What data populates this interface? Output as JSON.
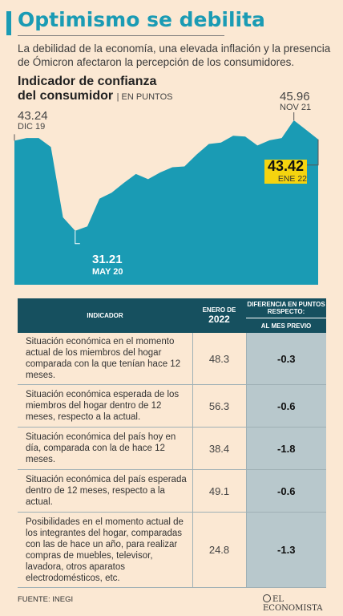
{
  "header": {
    "title": "Optimismo se debilita",
    "subtitle": "La debilidad de la economía, una elevada inflación y la presencia de Ómicron afectaron la percepción de los consumidores."
  },
  "indicator": {
    "title_line1": "Indicador de confianza",
    "title_line2": "del consumidor",
    "unit": "| EN PUNTOS"
  },
  "chart_data": {
    "type": "area",
    "color": "#1a9bb4",
    "highlight_color": "#f5d40f",
    "values": [
      43.24,
      43.6,
      43.6,
      42.4,
      33.0,
      31.21,
      31.8,
      35.5,
      36.3,
      37.6,
      38.8,
      38.1,
      39.0,
      39.7,
      39.8,
      41.4,
      42.8,
      43.0,
      43.9,
      43.8,
      42.6,
      43.3,
      43.6,
      45.96,
      44.7,
      43.42
    ],
    "ylim": [
      24,
      48
    ],
    "annotations": [
      {
        "index": 0,
        "value": "43.24",
        "date": "DIC 19"
      },
      {
        "index": 5,
        "value": "31.21",
        "date": "MAY 20"
      },
      {
        "index": 23,
        "value": "45.96",
        "date": "NOV 21"
      },
      {
        "index": 25,
        "value": "43.42",
        "date": "ENE 22"
      }
    ]
  },
  "table": {
    "headers": {
      "indicator": "INDICADOR",
      "period_line1": "ENERO DE",
      "period_line2": "2022",
      "diff_line1": "DIFERENCIA EN PUNTOS",
      "diff_line2": "RESPECTO:",
      "diff_sub": "AL MES PREVIO"
    },
    "rows": [
      {
        "indicator": "Situación económica en el momento actual de los miembros del hogar comparada con la que tenían hace 12 meses.",
        "value": "48.3",
        "diff": "-0.3"
      },
      {
        "indicator": "Situación económica esperada de los miembros del hogar dentro de 12 meses, respecto a la actual.",
        "value": "56.3",
        "diff": "-0.6"
      },
      {
        "indicator": "Situación económica del país hoy en día, comparada con la de hace 12 meses.",
        "value": "38.4",
        "diff": "-1.8"
      },
      {
        "indicator": "Situación económica del país esperada dentro de 12 meses, respecto a la actual.",
        "value": "49.1",
        "diff": "-0.6"
      },
      {
        "indicator": "Posibilidades en el momento actual de los integrantes del hogar, comparadas con las de hace un año, para realizar compras de muebles, televisor, lavadora, otros aparatos electrodomésticos, etc.",
        "value": "24.8",
        "diff": "-1.3"
      }
    ]
  },
  "footer": {
    "source": "FUENTE: INEGI",
    "brand": "EL ECONOMISTA"
  }
}
